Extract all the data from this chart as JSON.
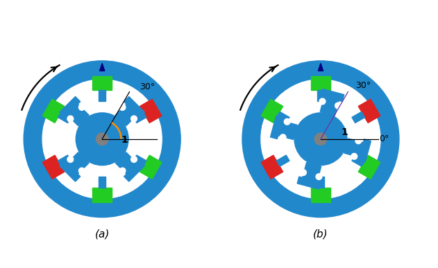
{
  "blue": "#2288cc",
  "green": "#22cc22",
  "red": "#dd2222",
  "gray": "#808080",
  "white": "#ffffff",
  "bg": "#ffffff",
  "title_a": "(a)",
  "title_b": "(b)",
  "angle_label_a": "30°",
  "angle_label_b": "30°",
  "label_0": "0°",
  "label_1": "1",
  "outer_r": 1.55,
  "ring_thickness": 0.32,
  "inner_air_r": 0.88,
  "stator_pole_angles_deg": [
    90,
    30,
    -30,
    -90,
    -150,
    150
  ],
  "stator_colors": [
    "green",
    "red",
    "green",
    "green",
    "red",
    "green"
  ],
  "rotor_pole_angles_deg_a": [
    45,
    135,
    225,
    315
  ],
  "rotor_pole_angles_deg_b": [
    75,
    165,
    255,
    345
  ],
  "hub_r": 0.12,
  "figsize": [
    6.31,
    3.87
  ],
  "dpi": 100
}
